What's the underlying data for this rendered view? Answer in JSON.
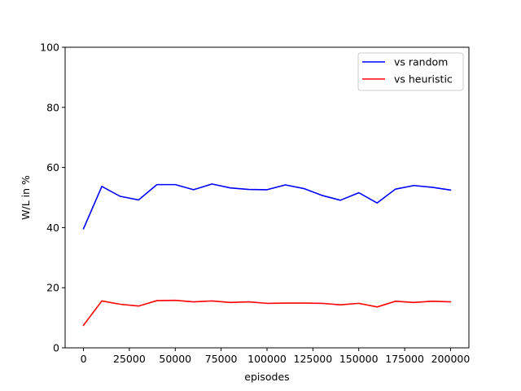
{
  "chart_data": {
    "type": "line",
    "title": "",
    "xlabel": "episodes",
    "ylabel": "W/L in %",
    "xlim": [
      -10000,
      210000
    ],
    "ylim": [
      0,
      100
    ],
    "xticks": [
      0,
      25000,
      50000,
      75000,
      100000,
      125000,
      150000,
      175000,
      200000
    ],
    "yticks": [
      0,
      20,
      40,
      60,
      80,
      100
    ],
    "grid": false,
    "legend_position": "top-right",
    "x": [
      0,
      10000,
      20000,
      30000,
      40000,
      50000,
      60000,
      70000,
      80000,
      90000,
      100000,
      110000,
      120000,
      130000,
      140000,
      150000,
      160000,
      170000,
      180000,
      190000,
      200000
    ],
    "series": [
      {
        "name": "vs random",
        "color": "#0000ff",
        "values": [
          39.6,
          53.7,
          50.4,
          49.2,
          54.3,
          54.3,
          52.6,
          54.5,
          53.2,
          52.7,
          52.6,
          54.2,
          53.0,
          50.7,
          49.1,
          51.6,
          48.2,
          52.8,
          54.0,
          53.4,
          52.5
        ]
      },
      {
        "name": "vs heuristic",
        "color": "#ff0000",
        "values": [
          7.5,
          15.6,
          14.5,
          13.9,
          15.7,
          15.8,
          15.3,
          15.6,
          15.1,
          15.3,
          14.8,
          14.9,
          14.9,
          14.8,
          14.3,
          14.8,
          13.6,
          15.5,
          15.1,
          15.5,
          15.3
        ]
      }
    ]
  }
}
